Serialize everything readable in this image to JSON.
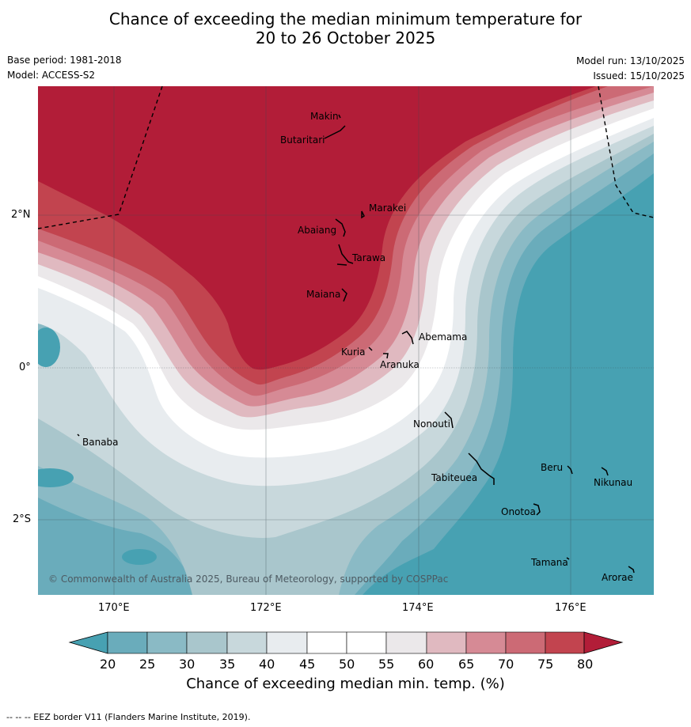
{
  "title": {
    "line1": "Chance of exceeding the median minimum temperature for",
    "line2": "20 to 26 October 2025"
  },
  "meta": {
    "base_period": "Base period: 1981-2018",
    "model": "Model: ACCESS-S2",
    "model_run": "Model run: 13/10/2025",
    "issued": "Issued: 15/10/2025"
  },
  "map": {
    "lon_ticks": [
      "170°E",
      "172°E",
      "174°E",
      "176°E"
    ],
    "lat_ticks": [
      "2°N",
      "0°",
      "2°S"
    ],
    "islands": [
      "Makin",
      "Butaritari",
      "Marakei",
      "Abaiang",
      "Tarawa",
      "Maiana",
      "Abemama",
      "Kuria",
      "Aranuka",
      "Nonouti",
      "Banaba",
      "Beru",
      "Nikunau",
      "Tabiteuea",
      "Onotoa",
      "Tamana",
      "Arorae"
    ],
    "copyright": "© Commonwealth of Australia 2025, Bureau of Meteorology, supported by COSPPac"
  },
  "colorbar": {
    "ticks": [
      "20",
      "25",
      "30",
      "35",
      "40",
      "45",
      "50",
      "55",
      "60",
      "65",
      "70",
      "75",
      "80"
    ],
    "colors": {
      "below": "#47a1b2",
      "c20_25": "#6aacbb",
      "c25_30": "#8abac5",
      "c30_35": "#a9c6cc",
      "c35_40": "#c8d8dc",
      "c40_45": "#e8ecef",
      "c45_50": "#ffffff",
      "c50_55": "#ffffff",
      "c55_60": "#ebe8ea",
      "c60_65": "#e0b9c0",
      "c65_70": "#d68a95",
      "c70_75": "#cc6a75",
      "c75_80": "#c2444f",
      "above": "#b21d38"
    },
    "label": "Chance of exceeding median min. temp. (%)"
  },
  "footer": "--  --  -- EEZ border V11 (Flanders Marine Institute, 2019)."
}
